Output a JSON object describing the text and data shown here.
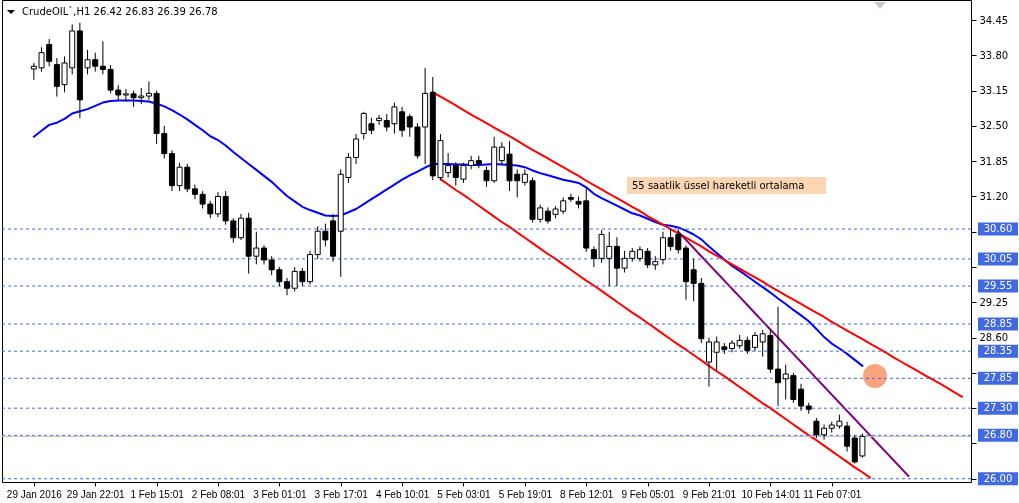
{
  "chart_data": {
    "type": "candlestick",
    "title": "CrudeOIL`,H1  26.42 26.83 26.39 26.78",
    "categories": [
      "29 Jan 2016",
      null,
      null,
      null,
      null,
      null,
      null,
      null,
      "29 Jan 22:01",
      null,
      null,
      null,
      null,
      null,
      null,
      null,
      "1 Feb 15:01",
      null,
      null,
      null,
      null,
      null,
      null,
      null,
      "2 Feb 08:01",
      null,
      null,
      null,
      null,
      null,
      null,
      null,
      "3 Feb 01:01",
      null,
      null,
      null,
      null,
      null,
      null,
      null,
      "3 Feb 17:01",
      null,
      null,
      null,
      null,
      null,
      null,
      null,
      "4 Feb 10:01",
      null,
      null,
      null,
      null,
      null,
      null,
      null,
      "5 Feb 03:01",
      null,
      null,
      null,
      null,
      null,
      null,
      null,
      "5 Feb 19:01",
      null,
      null,
      null,
      null,
      null,
      null,
      null,
      "8 Feb 12:01",
      null,
      null,
      null,
      null,
      null,
      null,
      null,
      "9 Feb 05:01",
      null,
      null,
      null,
      null,
      null,
      null,
      null,
      "9 Feb 21:01",
      null,
      null,
      null,
      null,
      null,
      null,
      null,
      "10 Feb 14:01",
      null,
      null,
      null,
      null,
      null,
      null,
      null,
      "11 Feb 07:01",
      null,
      null,
      null,
      null,
      null,
      null,
      null,
      null,
      null,
      null,
      null,
      null,
      null,
      null,
      null,
      null,
      null
    ],
    "ohlc": [
      [
        33.55,
        33.66,
        33.35,
        33.6
      ],
      [
        33.57,
        33.95,
        33.5,
        33.85
      ],
      [
        34.0,
        34.1,
        33.6,
        33.69
      ],
      [
        33.63,
        33.75,
        33.04,
        33.23
      ],
      [
        33.26,
        33.78,
        33.12,
        33.66
      ],
      [
        33.57,
        34.37,
        33.45,
        34.25
      ],
      [
        34.25,
        34.4,
        32.64,
        32.98
      ],
      [
        33.57,
        33.9,
        33.45,
        33.72
      ],
      [
        33.72,
        33.85,
        33.5,
        33.6
      ],
      [
        33.6,
        34.06,
        33.45,
        33.54
      ],
      [
        33.54,
        33.62,
        33.1,
        33.16
      ],
      [
        33.16,
        33.25,
        32.98,
        33.07
      ],
      [
        33.07,
        33.18,
        32.95,
        33.09
      ],
      [
        33.09,
        33.15,
        32.85,
        33.02
      ],
      [
        33.02,
        33.2,
        32.9,
        33.05
      ],
      [
        33.05,
        33.32,
        32.98,
        33.1
      ],
      [
        33.1,
        33.15,
        32.17,
        32.36
      ],
      [
        32.36,
        32.5,
        31.9,
        31.99
      ],
      [
        31.99,
        32.05,
        31.3,
        31.4
      ],
      [
        31.4,
        31.82,
        31.3,
        31.74
      ],
      [
        31.74,
        31.8,
        31.28,
        31.34
      ],
      [
        31.34,
        31.42,
        31.15,
        31.24
      ],
      [
        31.24,
        31.3,
        30.98,
        31.06
      ],
      [
        31.06,
        31.12,
        30.8,
        30.88
      ],
      [
        30.88,
        31.28,
        30.82,
        31.2
      ],
      [
        31.2,
        31.3,
        30.68,
        30.75
      ],
      [
        30.75,
        30.8,
        30.35,
        30.44
      ],
      [
        30.44,
        30.88,
        30.4,
        30.8
      ],
      [
        30.8,
        30.9,
        29.78,
        30.1
      ],
      [
        30.1,
        30.55,
        29.95,
        30.25
      ],
      [
        30.25,
        30.3,
        29.95,
        30.03
      ],
      [
        30.03,
        30.1,
        29.75,
        29.85
      ],
      [
        29.85,
        29.9,
        29.55,
        29.63
      ],
      [
        29.63,
        29.7,
        29.38,
        29.51
      ],
      [
        29.51,
        29.9,
        29.45,
        29.82
      ],
      [
        29.82,
        29.88,
        29.55,
        29.63
      ],
      [
        29.63,
        30.2,
        29.58,
        30.13
      ],
      [
        30.13,
        30.65,
        30.05,
        30.56
      ],
      [
        30.56,
        30.7,
        30.28,
        30.4
      ],
      [
        30.75,
        30.88,
        30.0,
        30.1
      ],
      [
        30.56,
        31.7,
        29.72,
        31.61
      ],
      [
        31.55,
        32.0,
        31.45,
        31.92
      ],
      [
        31.92,
        32.35,
        31.8,
        32.26
      ],
      [
        32.36,
        32.76,
        32.25,
        32.73
      ],
      [
        32.54,
        32.65,
        32.35,
        32.42
      ],
      [
        32.6,
        32.7,
        32.52,
        32.64
      ],
      [
        32.6,
        32.72,
        32.4,
        32.48
      ],
      [
        32.54,
        32.93,
        32.36,
        32.85
      ],
      [
        32.76,
        32.85,
        32.3,
        32.42
      ],
      [
        32.67,
        32.72,
        32.3,
        32.48
      ],
      [
        32.48,
        32.55,
        31.9,
        31.95
      ],
      [
        32.48,
        33.57,
        31.8,
        33.1
      ],
      [
        33.12,
        33.4,
        31.5,
        31.58
      ],
      [
        31.55,
        32.35,
        31.5,
        32.23
      ],
      [
        31.64,
        32.0,
        31.55,
        31.77
      ],
      [
        31.77,
        31.83,
        31.4,
        31.55
      ],
      [
        31.52,
        31.82,
        31.45,
        31.77
      ],
      [
        31.77,
        31.95,
        31.7,
        31.86
      ],
      [
        31.86,
        31.95,
        31.72,
        31.8
      ],
      [
        31.68,
        31.75,
        31.38,
        31.49
      ],
      [
        31.49,
        32.3,
        31.45,
        32.11
      ],
      [
        31.86,
        32.2,
        31.8,
        32.11
      ],
      [
        31.98,
        32.22,
        31.3,
        31.49
      ],
      [
        31.61,
        31.7,
        31.18,
        31.49
      ],
      [
        31.46,
        31.7,
        31.4,
        31.61
      ],
      [
        31.49,
        31.55,
        30.72,
        30.78
      ],
      [
        30.78,
        31.05,
        30.72,
        30.99
      ],
      [
        30.93,
        31.0,
        30.7,
        30.75
      ],
      [
        30.87,
        31.02,
        30.8,
        30.97
      ],
      [
        30.93,
        31.18,
        30.88,
        31.12
      ],
      [
        31.18,
        31.25,
        31.1,
        31.15
      ],
      [
        31.11,
        31.2,
        30.98,
        31.06
      ],
      [
        31.12,
        31.35,
        30.18,
        30.25
      ],
      [
        30.22,
        30.28,
        29.9,
        30.06
      ],
      [
        30.06,
        30.58,
        29.98,
        30.5
      ],
      [
        30.06,
        30.55,
        29.55,
        30.28
      ],
      [
        30.28,
        30.45,
        29.55,
        29.88
      ],
      [
        29.88,
        30.2,
        29.8,
        30.06
      ],
      [
        30.06,
        30.25,
        30.0,
        30.19
      ],
      [
        30.06,
        30.28,
        30.0,
        30.22
      ],
      [
        30.19,
        30.25,
        29.88,
        29.94
      ],
      [
        29.94,
        30.1,
        29.85,
        30.0
      ],
      [
        30.04,
        30.55,
        29.95,
        30.44
      ],
      [
        30.44,
        30.6,
        30.2,
        30.28
      ],
      [
        30.5,
        30.6,
        30.15,
        30.22
      ],
      [
        30.25,
        30.3,
        29.3,
        29.63
      ],
      [
        29.85,
        30.05,
        29.27,
        29.6
      ],
      [
        29.6,
        29.7,
        28.5,
        28.58
      ],
      [
        28.15,
        28.6,
        27.7,
        28.52
      ],
      [
        28.33,
        28.62,
        28.0,
        28.52
      ],
      [
        28.43,
        28.5,
        28.3,
        28.38
      ],
      [
        28.4,
        28.55,
        28.33,
        28.5
      ],
      [
        28.45,
        28.65,
        28.4,
        28.55
      ],
      [
        28.55,
        28.62,
        28.3,
        28.36
      ],
      [
        28.42,
        28.7,
        28.35,
        28.64
      ],
      [
        28.52,
        28.74,
        28.25,
        28.67
      ],
      [
        28.64,
        28.75,
        27.95,
        28.02
      ],
      [
        28.02,
        29.17,
        27.34,
        27.77
      ],
      [
        27.84,
        28.1,
        27.46,
        27.93
      ],
      [
        27.9,
        27.95,
        27.4,
        27.46
      ],
      [
        27.65,
        27.75,
        27.25,
        27.34
      ],
      [
        27.34,
        27.4,
        27.2,
        27.28
      ],
      [
        27.06,
        27.12,
        26.75,
        26.81
      ],
      [
        26.81,
        27.0,
        26.72,
        26.93
      ],
      [
        26.93,
        27.05,
        26.85,
        26.99
      ],
      [
        26.97,
        27.18,
        26.92,
        27.06
      ],
      [
        26.97,
        27.05,
        26.5,
        26.6
      ],
      [
        26.75,
        26.8,
        26.28,
        26.31
      ],
      [
        26.42,
        26.83,
        26.39,
        26.78
      ],
      null,
      null,
      null,
      null,
      null,
      null,
      null,
      null,
      null,
      null,
      null,
      null,
      null
    ],
    "series": [
      {
        "type": "line",
        "color": "#0000ff",
        "values": [
          32.3,
          32.41,
          32.52,
          32.56,
          32.63,
          32.73,
          32.77,
          32.81,
          32.87,
          32.93,
          32.96,
          32.97,
          32.97,
          32.97,
          32.96,
          32.95,
          32.91,
          32.86,
          32.79,
          32.71,
          32.62,
          32.52,
          32.42,
          32.31,
          32.24,
          32.14,
          32.02,
          31.91,
          31.8,
          31.69,
          31.58,
          31.47,
          31.34,
          31.21,
          31.11,
          31.01,
          30.95,
          30.9,
          30.85,
          30.84,
          30.85,
          30.91,
          30.97,
          31.06,
          31.15,
          31.24,
          31.33,
          31.42,
          31.51,
          31.59,
          31.66,
          31.73,
          31.8,
          31.8,
          31.8,
          31.79,
          31.79,
          31.78,
          31.78,
          31.79,
          31.8,
          31.79,
          31.78,
          31.77,
          31.74,
          31.68,
          31.63,
          31.59,
          31.55,
          31.51,
          31.48,
          31.45,
          31.37,
          31.25,
          31.17,
          31.1,
          31.03,
          30.96,
          30.89,
          30.85,
          30.79,
          30.73,
          30.68,
          30.66,
          30.63,
          30.57,
          30.5,
          30.41,
          30.28,
          30.16,
          30.04,
          29.92,
          29.83,
          29.73,
          29.63,
          29.53,
          29.43,
          29.32,
          29.22,
          29.11,
          29.01,
          28.9,
          28.76,
          28.61,
          28.49,
          28.4,
          28.3,
          28.19,
          28.08,
          null,
          null,
          null,
          null,
          null,
          null,
          null,
          null,
          null,
          null,
          null,
          null,
          null
        ]
      },
      {
        "type": "line",
        "color": "#ff0000",
        "values": [
          null,
          null,
          null,
          null,
          null,
          null,
          null,
          null,
          null,
          null,
          null,
          null,
          null,
          null,
          null,
          null,
          null,
          null,
          null,
          null,
          null,
          null,
          null,
          null,
          null,
          null,
          null,
          null,
          null,
          null,
          null,
          null,
          null,
          null,
          null,
          null,
          null,
          null,
          null,
          null,
          null,
          null,
          null,
          null,
          null,
          null,
          null,
          null,
          null,
          null,
          null,
          null,
          33.12,
          33.04,
          32.96,
          32.88,
          32.79,
          32.71,
          32.63,
          32.55,
          32.47,
          32.39,
          32.31,
          32.23,
          32.14,
          32.06,
          31.98,
          31.9,
          31.82,
          31.74,
          31.66,
          31.58,
          31.49,
          31.41,
          31.33,
          31.25,
          31.17,
          31.09,
          31.01,
          30.93,
          30.84,
          30.76,
          30.68,
          30.6,
          30.52,
          30.44,
          30.36,
          30.28,
          30.19,
          30.11,
          30.03,
          29.95,
          29.87,
          29.79,
          29.71,
          29.63,
          29.54,
          29.46,
          29.38,
          29.3,
          29.22,
          29.14,
          29.06,
          28.98,
          28.89,
          28.81,
          28.73,
          28.65,
          28.57,
          28.49,
          28.41,
          28.33,
          28.24,
          28.16,
          28.08,
          28.0,
          27.92,
          27.84,
          27.76,
          27.68,
          27.59,
          27.51
        ]
      },
      {
        "type": "line",
        "color": "#ff0000",
        "values": [
          null,
          null,
          null,
          null,
          null,
          null,
          null,
          null,
          null,
          null,
          null,
          null,
          null,
          null,
          null,
          null,
          null,
          null,
          null,
          null,
          null,
          null,
          null,
          null,
          null,
          null,
          null,
          null,
          null,
          null,
          null,
          null,
          null,
          null,
          null,
          null,
          null,
          null,
          null,
          null,
          null,
          null,
          null,
          null,
          null,
          null,
          null,
          null,
          null,
          null,
          null,
          null,
          null,
          31.52,
          31.42,
          31.32,
          31.23,
          31.13,
          31.03,
          30.93,
          30.83,
          30.73,
          30.64,
          30.54,
          30.44,
          30.34,
          30.24,
          30.14,
          30.05,
          29.95,
          29.85,
          29.75,
          29.65,
          29.56,
          29.46,
          29.36,
          29.26,
          29.16,
          29.06,
          28.97,
          28.87,
          28.77,
          28.67,
          28.57,
          28.47,
          28.38,
          28.28,
          28.18,
          28.08,
          27.98,
          27.89,
          27.79,
          27.69,
          27.59,
          27.49,
          27.39,
          27.3,
          27.2,
          27.1,
          27.0,
          26.9,
          26.8,
          26.71,
          26.61,
          26.51,
          26.41,
          26.31,
          26.21,
          26.12,
          26.02,
          null,
          null,
          null,
          null,
          null,
          null,
          null,
          null,
          null,
          null,
          null,
          null
        ]
      },
      {
        "type": "line",
        "color": "#800080",
        "values": [
          null,
          null,
          null,
          null,
          null,
          null,
          null,
          null,
          null,
          null,
          null,
          null,
          null,
          null,
          null,
          null,
          null,
          null,
          null,
          null,
          null,
          null,
          null,
          null,
          null,
          null,
          null,
          null,
          null,
          null,
          null,
          null,
          null,
          null,
          null,
          null,
          null,
          null,
          null,
          null,
          null,
          null,
          null,
          null,
          null,
          null,
          null,
          null,
          null,
          null,
          null,
          null,
          null,
          null,
          null,
          null,
          null,
          null,
          null,
          null,
          null,
          null,
          null,
          null,
          null,
          null,
          null,
          null,
          null,
          null,
          null,
          null,
          null,
          null,
          null,
          null,
          null,
          null,
          null,
          null,
          null,
          null,
          null,
          null,
          30.55,
          30.4,
          30.25,
          30.1,
          29.95,
          29.8,
          29.65,
          29.5,
          29.35,
          29.2,
          29.05,
          28.9,
          28.75,
          28.6,
          28.45,
          28.3,
          28.15,
          28.0,
          27.85,
          27.7,
          27.55,
          27.4,
          27.25,
          27.1,
          26.95,
          26.8,
          26.65,
          26.5,
          26.35,
          26.2,
          26.05,
          null,
          null,
          null,
          null,
          null,
          null,
          null
        ]
      }
    ],
    "ylim": [
      25.94,
      34.82
    ],
    "yticks": [
      34.45,
      {
        "value": 33.8,
        "label": "33.80"
      },
      33.15,
      {
        "value": 32.5,
        "label": "32.50"
      },
      31.85,
      {
        "value": 31.2,
        "label": "31.20"
      },
      {
        "value": 30.55,
        "label": null
      },
      {
        "value": 29.9,
        "label": null
      },
      29.25,
      {
        "value": 28.6,
        "label": "28.60"
      },
      {
        "value": 27.95,
        "label": null
      },
      {
        "value": 27.3,
        "label": null
      },
      {
        "value": 26.65,
        "label": null
      },
      {
        "value": 26.0,
        "label": null
      }
    ],
    "ref_lines": [
      {
        "axis": "y",
        "value": 30.6,
        "label": "30.60",
        "color": "#4169e1",
        "line_style": "dashed"
      },
      {
        "axis": "y",
        "value": 30.05,
        "label": "30.05",
        "color": "#4169e1",
        "line_style": "dashed"
      },
      {
        "axis": "y",
        "value": 29.55,
        "label": "29.55",
        "color": "#4169e1",
        "line_style": "dashed"
      },
      {
        "axis": "y",
        "value": 28.85,
        "label": "28.85",
        "color": "#4169e1",
        "line_style": "dashed"
      },
      {
        "axis": "y",
        "value": 28.35,
        "label": "28.35",
        "color": "#4169e1",
        "line_style": "dashed"
      },
      {
        "axis": "y",
        "value": 27.85,
        "label": "27.85",
        "color": "#4169e1",
        "line_style": "dashed"
      },
      {
        "axis": "y",
        "value": 27.3,
        "label": "27.30",
        "color": "#4169e1",
        "line_style": "dashed"
      },
      {
        "axis": "y",
        "value": 26.8,
        "label": "26.80",
        "color": "#4169e1",
        "line_style": "dashed"
      },
      {
        "axis": "y",
        "value": 26.0,
        "label": "26.00",
        "color": "#4169e1",
        "line_style": "dashed"
      },
      {
        "axis": "y",
        "value": 26.78,
        "color": "#c0c0c0",
        "line_style": "solid"
      }
    ],
    "annotations": [
      "55 saatlik üssel hareketli ortalama"
    ]
  }
}
